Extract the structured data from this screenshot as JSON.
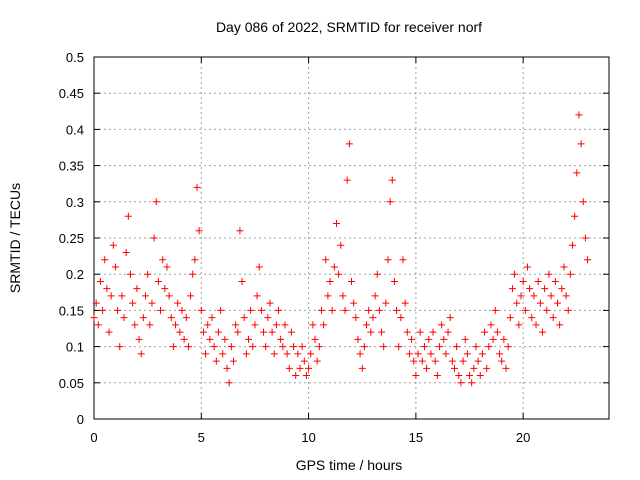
{
  "chart_data": {
    "type": "scatter",
    "title": "Day 086 of 2022, SRMTID for receiver norf",
    "xlabel": "GPS time / hours",
    "ylabel": "SRMTID / TECUs",
    "xlim": [
      0,
      24
    ],
    "ylim": [
      0,
      0.5
    ],
    "xticks": [
      "0",
      "5",
      "10",
      "15",
      "20"
    ],
    "xtick_values": [
      0,
      5,
      10,
      15,
      20
    ],
    "yticks": [
      "0",
      "0.05",
      "0.1",
      "0.15",
      "0.2",
      "0.25",
      "0.3",
      "0.35",
      "0.4",
      "0.45",
      "0.5"
    ],
    "ytick_values": [
      0,
      0.05,
      0.1,
      0.15,
      0.2,
      0.25,
      0.3,
      0.35,
      0.4,
      0.45,
      0.5
    ],
    "grid": true,
    "marker": "plus",
    "color": "#ff0000",
    "series": [
      {
        "x": [
          0.0,
          0.1,
          0.2,
          0.3,
          0.4,
          0.5,
          0.6,
          0.7,
          0.8,
          0.9,
          1.0,
          1.1,
          1.2,
          1.3,
          1.4,
          1.5,
          1.6,
          1.7,
          1.8,
          1.9,
          2.0,
          2.1,
          2.2,
          2.3,
          2.4,
          2.5,
          2.6,
          2.7,
          2.8,
          2.9,
          3.0,
          3.1,
          3.2,
          3.3,
          3.4,
          3.5,
          3.6,
          3.7,
          3.8,
          3.9,
          4.0,
          4.1,
          4.2,
          4.3,
          4.4,
          4.5,
          4.6,
          4.7,
          4.8,
          4.9,
          5.0,
          5.1,
          5.2,
          5.3,
          5.4,
          5.5,
          5.6,
          5.7,
          5.8,
          5.9,
          6.0,
          6.1,
          6.2,
          6.3,
          6.4,
          6.5,
          6.6,
          6.7,
          6.8,
          6.9,
          7.0,
          7.1,
          7.2,
          7.3,
          7.4,
          7.5,
          7.6,
          7.7,
          7.8,
          7.9,
          8.0,
          8.1,
          8.2,
          8.3,
          8.4,
          8.5,
          8.6,
          8.7,
          8.8,
          8.9,
          9.0,
          9.1,
          9.2,
          9.3,
          9.4,
          9.5,
          9.6,
          9.7,
          9.8,
          9.9,
          10.0,
          10.1,
          10.2,
          10.3,
          10.4,
          10.5,
          10.6,
          10.7,
          10.8,
          10.9,
          11.0,
          11.1,
          11.2,
          11.3,
          11.4,
          11.5,
          11.6,
          11.7,
          11.8,
          11.9,
          12.0,
          12.1,
          12.2,
          12.3,
          12.4,
          12.5,
          12.6,
          12.7,
          12.8,
          12.9,
          13.0,
          13.1,
          13.2,
          13.3,
          13.4,
          13.5,
          13.6,
          13.7,
          13.8,
          13.9,
          14.0,
          14.1,
          14.2,
          14.3,
          14.4,
          14.5,
          14.6,
          14.7,
          14.8,
          14.9,
          15.0,
          15.1,
          15.2,
          15.3,
          15.4,
          15.5,
          15.6,
          15.7,
          15.8,
          15.9,
          16.0,
          16.1,
          16.2,
          16.3,
          16.4,
          16.5,
          16.6,
          16.7,
          16.8,
          16.9,
          17.0,
          17.1,
          17.2,
          17.3,
          17.4,
          17.5,
          17.6,
          17.7,
          17.8,
          17.9,
          18.0,
          18.1,
          18.2,
          18.3,
          18.4,
          18.5,
          18.6,
          18.7,
          18.8,
          18.9,
          19.0,
          19.1,
          19.2,
          19.3,
          19.4,
          19.5,
          19.6,
          19.7,
          19.8,
          19.9,
          20.0,
          20.1,
          20.2,
          20.3,
          20.4,
          20.5,
          20.6,
          20.7,
          20.8,
          20.9,
          21.0,
          21.1,
          21.2,
          21.3,
          21.4,
          21.5,
          21.6,
          21.7,
          21.8,
          21.9,
          22.0,
          22.1,
          22.2,
          22.3,
          22.4,
          22.5,
          22.6,
          22.7,
          22.8,
          22.9,
          23.0
        ],
        "y": [
          0.14,
          0.16,
          0.13,
          0.19,
          0.15,
          0.22,
          0.18,
          0.12,
          0.17,
          0.24,
          0.21,
          0.15,
          0.1,
          0.17,
          0.14,
          0.23,
          0.28,
          0.2,
          0.16,
          0.13,
          0.18,
          0.11,
          0.09,
          0.14,
          0.17,
          0.2,
          0.13,
          0.16,
          0.25,
          0.3,
          0.19,
          0.15,
          0.22,
          0.18,
          0.21,
          0.17,
          0.14,
          0.1,
          0.13,
          0.16,
          0.12,
          0.15,
          0.11,
          0.14,
          0.1,
          0.17,
          0.2,
          0.22,
          0.32,
          0.26,
          0.15,
          0.12,
          0.09,
          0.13,
          0.11,
          0.14,
          0.1,
          0.08,
          0.12,
          0.15,
          0.09,
          0.11,
          0.07,
          0.05,
          0.1,
          0.08,
          0.13,
          0.12,
          0.26,
          0.19,
          0.14,
          0.09,
          0.11,
          0.15,
          0.1,
          0.13,
          0.17,
          0.21,
          0.15,
          0.12,
          0.1,
          0.14,
          0.16,
          0.12,
          0.09,
          0.13,
          0.15,
          0.11,
          0.1,
          0.13,
          0.09,
          0.07,
          0.12,
          0.1,
          0.06,
          0.09,
          0.07,
          0.1,
          0.08,
          0.06,
          0.07,
          0.09,
          0.13,
          0.11,
          0.08,
          0.1,
          0.15,
          0.13,
          0.22,
          0.17,
          0.19,
          0.15,
          0.21,
          0.27,
          0.2,
          0.24,
          0.17,
          0.15,
          0.33,
          0.38,
          0.19,
          0.16,
          0.14,
          0.11,
          0.09,
          0.07,
          0.1,
          0.13,
          0.15,
          0.12,
          0.14,
          0.17,
          0.2,
          0.15,
          0.12,
          0.1,
          0.16,
          0.22,
          0.3,
          0.33,
          0.19,
          0.15,
          0.1,
          0.14,
          0.22,
          0.16,
          0.12,
          0.09,
          0.11,
          0.08,
          0.06,
          0.09,
          0.12,
          0.08,
          0.1,
          0.07,
          0.11,
          0.09,
          0.12,
          0.08,
          0.06,
          0.1,
          0.13,
          0.11,
          0.09,
          0.12,
          0.14,
          0.08,
          0.07,
          0.1,
          0.06,
          0.05,
          0.08,
          0.11,
          0.09,
          0.06,
          0.05,
          0.07,
          0.1,
          0.08,
          0.06,
          0.09,
          0.12,
          0.07,
          0.1,
          0.13,
          0.11,
          0.15,
          0.12,
          0.09,
          0.08,
          0.11,
          0.07,
          0.1,
          0.14,
          0.18,
          0.2,
          0.16,
          0.13,
          0.17,
          0.19,
          0.15,
          0.21,
          0.18,
          0.14,
          0.17,
          0.13,
          0.19,
          0.16,
          0.12,
          0.18,
          0.15,
          0.2,
          0.17,
          0.14,
          0.19,
          0.16,
          0.13,
          0.18,
          0.21,
          0.17,
          0.15,
          0.2,
          0.24,
          0.28,
          0.34,
          0.42,
          0.38,
          0.3,
          0.25,
          0.22
        ]
      }
    ]
  }
}
